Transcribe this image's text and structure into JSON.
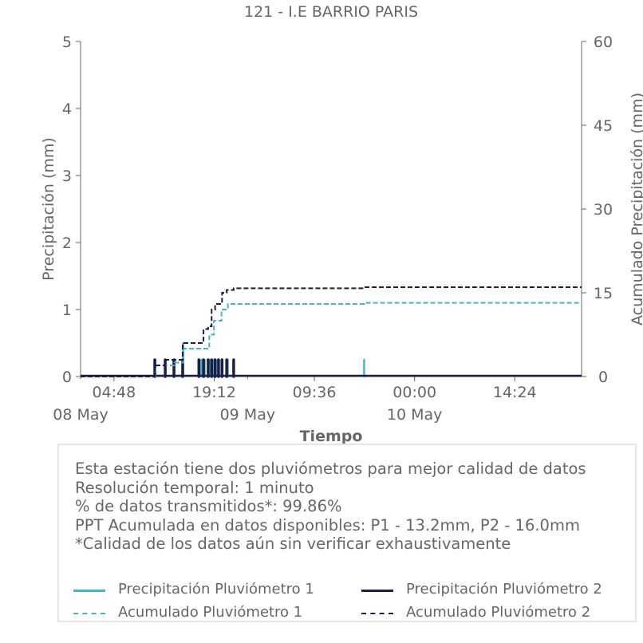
{
  "colors": {
    "p1": "#4ab3c4",
    "p2": "#1c1f45",
    "text": "#666666",
    "axis": "#666666",
    "box_border": "#e6e6e6"
  },
  "chart_data": {
    "type": "line",
    "title": "121 - I.E BARRIO PARIS",
    "xlabel": "Tiempo",
    "ylabel": "Precipitación (mm)",
    "y2label": "Acumulado Precipitación (mm)",
    "ylim": [
      0,
      5
    ],
    "y2lim": [
      0,
      60
    ],
    "yticks": [
      "0",
      "1",
      "2",
      "3",
      "4",
      "5"
    ],
    "y2ticks": [
      "0",
      "15",
      "30",
      "45",
      "60"
    ],
    "xlim": [
      "2024-05-08 00:00",
      "2024-05-11 00:00"
    ],
    "xticks": [
      {
        "time": "2024-05-08 04:48",
        "label": "04:48"
      },
      {
        "time": "2024-05-08 19:12",
        "label": "19:12"
      },
      {
        "time": "2024-05-09 09:36",
        "label": "09:36"
      },
      {
        "time": "2024-05-10 00:00",
        "label": "00:00"
      },
      {
        "time": "2024-05-10 14:24",
        "label": "14:24"
      }
    ],
    "date_labels": [
      {
        "time": "2024-05-08 00:00",
        "label": "08 May"
      },
      {
        "time": "2024-05-09 00:00",
        "label": "09 May"
      },
      {
        "time": "2024-05-10 00:00",
        "label": "10 May"
      }
    ],
    "grid": false,
    "series": [
      {
        "name": "Precipitación Pluviómetro 1",
        "axis": "left",
        "style": "solid",
        "color": "#4ab3c4",
        "x": [
          "2024-05-08 10:45",
          "2024-05-08 13:30",
          "2024-05-08 14:45",
          "2024-05-08 17:20",
          "2024-05-08 17:50",
          "2024-05-08 18:30",
          "2024-05-08 19:10",
          "2024-05-08 19:40",
          "2024-05-08 20:15",
          "2024-05-08 21:10",
          "2024-05-09 16:45"
        ],
        "values": [
          0.25,
          0.25,
          0.5,
          0.25,
          0.25,
          0.25,
          0.25,
          0.25,
          0.25,
          0.25,
          0.25
        ]
      },
      {
        "name": "Precipitación Pluviómetro 2",
        "axis": "left",
        "style": "solid",
        "color": "#1c1f45",
        "x": [
          "2024-05-08 10:40",
          "2024-05-08 12:10",
          "2024-05-08 13:25",
          "2024-05-08 14:40",
          "2024-05-08 17:00",
          "2024-05-08 17:40",
          "2024-05-08 18:20",
          "2024-05-08 18:50",
          "2024-05-08 19:20",
          "2024-05-08 19:50",
          "2024-05-08 20:20",
          "2024-05-08 21:00",
          "2024-05-08 22:00"
        ],
        "values": [
          0.25,
          0.25,
          0.25,
          0.25,
          0.25,
          0.25,
          0.25,
          0.25,
          0.25,
          0.25,
          0.25,
          0.25,
          0.25
        ]
      },
      {
        "name": "Acumulado Pluviómetro 1",
        "axis": "right",
        "style": "dashed",
        "color": "#4ab3c4",
        "x": [
          "2024-05-08 00:00",
          "2024-05-08 10:45",
          "2024-05-08 13:30",
          "2024-05-08 14:45",
          "2024-05-08 17:20",
          "2024-05-08 18:30",
          "2024-05-08 19:10",
          "2024-05-08 20:15",
          "2024-05-08 21:10",
          "2024-05-09 16:45",
          "2024-05-11 00:00"
        ],
        "values": [
          0,
          2.0,
          2.5,
          5.0,
          5.0,
          7.5,
          10.0,
          12.0,
          13.0,
          13.2,
          13.2
        ]
      },
      {
        "name": "Acumulado Pluviómetro 2",
        "axis": "right",
        "style": "dashed",
        "color": "#1c1f45",
        "x": [
          "2024-05-08 00:00",
          "2024-05-08 10:40",
          "2024-05-08 12:10",
          "2024-05-08 14:40",
          "2024-05-08 17:00",
          "2024-05-08 17:40",
          "2024-05-08 18:20",
          "2024-05-08 18:50",
          "2024-05-08 19:20",
          "2024-05-08 20:20",
          "2024-05-08 21:00",
          "2024-05-08 22:00",
          "2024-05-09 16:40",
          "2024-05-11 00:00"
        ],
        "values": [
          0,
          2.0,
          3.0,
          6.0,
          6.0,
          8.5,
          9.0,
          12.0,
          13.0,
          15.0,
          15.5,
          15.8,
          16.0,
          16.0
        ]
      }
    ],
    "legend_position": "below"
  },
  "info": {
    "lines": [
      "Esta estación tiene dos pluviómetros para mejor calidad de datos",
      "Resolución temporal: 1 minuto",
      "% de datos transmitidos*: 99.86%",
      "PPT Acumulada en datos disponibles: P1 - 13.2mm, P2 - 16.0mm",
      "*Calidad de los datos aún sin verificar exhaustivamente"
    ]
  },
  "legend": {
    "items": [
      {
        "label": "Precipitación Pluviómetro 1",
        "color": "#4ab3c4",
        "style": "solid"
      },
      {
        "label": "Precipitación Pluviómetro 2",
        "color": "#1c1f45",
        "style": "solid"
      },
      {
        "label": "Acumulado Pluviómetro 1",
        "color": "#4ab3c4",
        "style": "dashed"
      },
      {
        "label": "Acumulado Pluviómetro 2",
        "color": "#1c1f45",
        "style": "dashed"
      }
    ]
  }
}
